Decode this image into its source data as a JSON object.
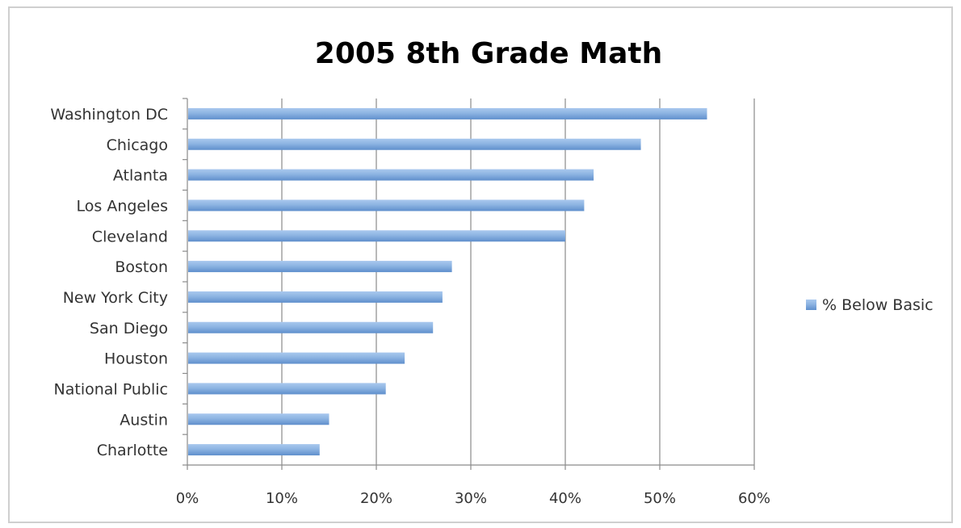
{
  "chart_data": {
    "type": "bar",
    "orientation": "horizontal",
    "title": "2005 8th Grade Math",
    "categories": [
      "Washington DC",
      "Chicago",
      "Atlanta",
      "Los Angeles",
      "Cleveland",
      "Boston",
      "New York City",
      "San Diego",
      "Houston",
      "National Public",
      "Austin",
      "Charlotte"
    ],
    "series": [
      {
        "name": "% Below Basic",
        "values": [
          55,
          48,
          43,
          42,
          40,
          28,
          27,
          26,
          23,
          21,
          15,
          14
        ],
        "color": "#8db4e2"
      }
    ],
    "xlim": [
      0,
      60
    ],
    "xticks": [
      0,
      10,
      20,
      30,
      40,
      50,
      60
    ],
    "xtick_labels": [
      "0%",
      "10%",
      "20%",
      "30%",
      "40%",
      "50%",
      "60%"
    ],
    "xlabel": "",
    "ylabel": "",
    "grid": "vertical major gridlines",
    "legend_position": "right"
  }
}
